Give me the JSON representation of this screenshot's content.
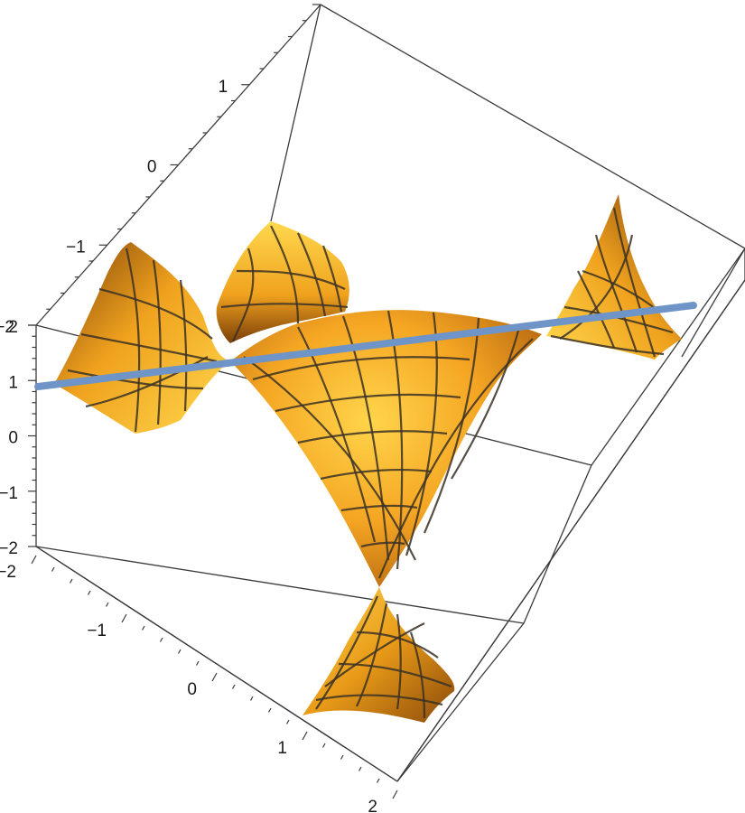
{
  "chart_data": {
    "type": "surface3d",
    "title": "",
    "axes": {
      "top": {
        "ticks": [
          -2,
          -1,
          0,
          1
        ]
      },
      "left": {
        "ticks": [
          2,
          1,
          0,
          -1,
          -2
        ]
      },
      "bottom": {
        "ticks": [
          -2,
          -1,
          0,
          1,
          2
        ]
      }
    },
    "surface": {
      "color": "#f5a623",
      "mesh_color": "#3b3126",
      "pieces": 5
    },
    "line": {
      "color": "#6f94c8"
    },
    "bounding_box": true,
    "grid": false,
    "legend": "none"
  }
}
